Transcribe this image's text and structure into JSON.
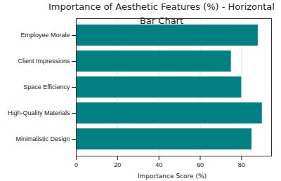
{
  "chart_data": {
    "type": "bar",
    "orientation": "horizontal",
    "title": "Importance of Aesthetic Features (%) - Horizontal Bar Chart",
    "xlabel": "Importance Score (%)",
    "categories": [
      "Minimalistic Design",
      "High-Quality Materials",
      "Space Efficiency",
      "Client Impressions",
      "Employee Morale"
    ],
    "values": [
      85,
      90,
      80,
      75,
      88
    ],
    "color": "#008080",
    "xlim": [
      0,
      94.5
    ],
    "xticks": [
      0,
      20,
      40,
      60,
      80
    ],
    "grid": true
  }
}
